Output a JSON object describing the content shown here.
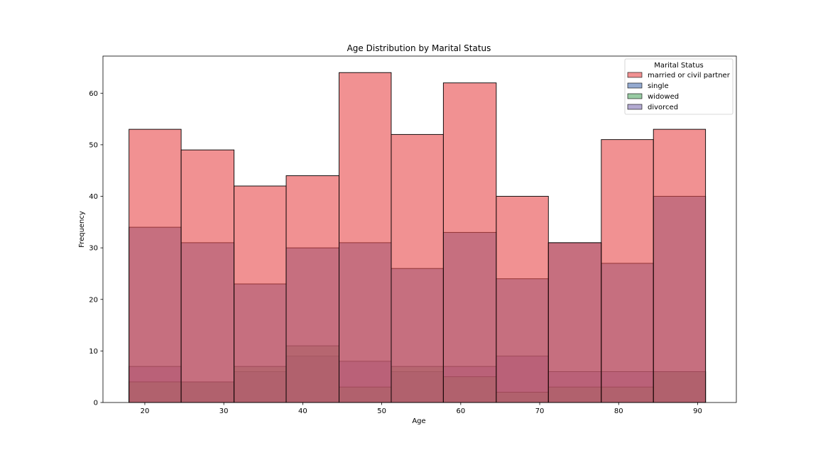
{
  "chart_data": {
    "type": "histogram",
    "title": "Age Distribution by Marital Status",
    "xlabel": "Age",
    "ylabel": "Frequency",
    "xlim": [
      14.7,
      94.9
    ],
    "ylim": [
      0,
      67.2
    ],
    "xticks": [
      20,
      30,
      40,
      50,
      60,
      70,
      80,
      90
    ],
    "yticks": [
      0,
      10,
      20,
      30,
      40,
      50,
      60
    ],
    "bin_edges": [
      18,
      24.6,
      31.3,
      37.9,
      44.6,
      51.2,
      57.8,
      64.5,
      71.1,
      77.8,
      84.4,
      91
    ],
    "legend": {
      "title": "Marital Status",
      "position": "top-right"
    },
    "series": [
      {
        "name": "married or civil partner",
        "color": "#e8474a",
        "values": [
          53,
          49,
          42,
          44,
          64,
          52,
          62,
          40,
          31,
          51,
          53
        ]
      },
      {
        "name": "single",
        "color": "#4c72b0",
        "values": [
          34,
          31,
          23,
          30,
          31,
          26,
          33,
          24,
          31,
          27,
          40
        ]
      },
      {
        "name": "widowed",
        "color": "#55a868",
        "values": [
          4,
          4,
          7,
          11,
          3,
          7,
          5,
          2,
          3,
          3,
          6
        ]
      },
      {
        "name": "divorced",
        "color": "#8172b3",
        "values": [
          7,
          4,
          6,
          9,
          8,
          6,
          7,
          9,
          6,
          6,
          6
        ]
      }
    ]
  }
}
